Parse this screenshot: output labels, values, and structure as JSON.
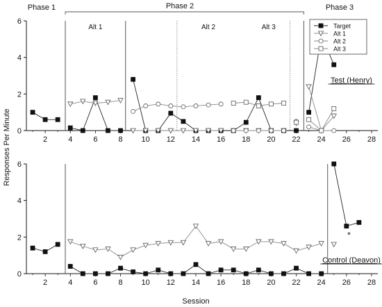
{
  "chart_data": {
    "type": "line",
    "ylabel": "Responses Per Minute",
    "xlabel": "Session",
    "x_ticks": [
      2,
      4,
      6,
      8,
      10,
      12,
      14,
      16,
      18,
      20,
      22,
      24,
      26,
      28
    ],
    "xlim": [
      0.5,
      28.5
    ],
    "phase_labels": [
      "Phase 1",
      "Phase 2",
      "Phase 3"
    ],
    "legend": {
      "placement": "top-right",
      "entries": [
        {
          "name": "Target",
          "marker": "square-filled"
        },
        {
          "name": "Alt 1",
          "marker": "triangle-down-open"
        },
        {
          "name": "Alt 2",
          "marker": "circle-open"
        },
        {
          "name": "Alt 3",
          "marker": "square-open"
        }
      ]
    },
    "panels": [
      {
        "id": "henry",
        "label": "Test (Henry)",
        "ylim": [
          0,
          6
        ],
        "y_ticks": [
          0,
          2,
          4,
          6
        ],
        "phase_lines": [
          3.6,
          8.4,
          22.6
        ],
        "sub_lines": [
          12.5,
          21.5
        ],
        "sub_labels": [
          {
            "text": "Alt 1",
            "x": 6
          },
          {
            "text": "Alt 2",
            "x": 15
          },
          {
            "text": "Alt 3",
            "x": 19.8
          }
        ],
        "series": [
          {
            "name": "Target",
            "marker": "square-filled",
            "segments": [
              [
                [
                  1,
                  1.0
                ],
                [
                  2,
                  0.6
                ],
                [
                  3,
                  0.6
                ]
              ],
              [
                [
                  4,
                  0.15
                ],
                [
                  5,
                  0.0
                ],
                [
                  6,
                  1.8
                ],
                [
                  7,
                  0.0
                ],
                [
                  8,
                  0.0
                ]
              ],
              [
                [
                  9,
                  2.8
                ],
                [
                  10,
                  0.0
                ],
                [
                  11,
                  0.0
                ],
                [
                  12,
                  0.95
                ],
                [
                  13,
                  0.5
                ],
                [
                  14,
                  0.0
                ],
                [
                  15,
                  0.0
                ],
                [
                  16,
                  0.0
                ]
              ],
              [
                [
                  17,
                  0.0
                ],
                [
                  18,
                  0.45
                ],
                [
                  19,
                  1.8
                ],
                [
                  20,
                  0.0
                ],
                [
                  21,
                  0.0
                ]
              ],
              [
                [
                  22,
                  0.0
                ]
              ],
              [
                [
                  23,
                  1.0
                ],
                [
                  24,
                  5.2
                ],
                [
                  25,
                  3.6
                ]
              ]
            ]
          },
          {
            "name": "Alt 1",
            "marker": "triangle-down-open",
            "segments": [
              [
                [
                  4,
                  1.45
                ],
                [
                  5,
                  1.6
                ],
                [
                  6,
                  1.5
                ],
                [
                  7,
                  1.55
                ],
                [
                  8,
                  1.65
                ]
              ],
              [
                [
                  9,
                  0.0
                ],
                [
                  10,
                  0.0
                ],
                [
                  11,
                  0.0
                ],
                [
                  12,
                  0.0
                ],
                [
                  13,
                  0.0
                ],
                [
                  14,
                  0.0
                ],
                [
                  15,
                  0.0
                ],
                [
                  16,
                  0.0
                ]
              ],
              [
                [
                  17,
                  0.0
                ],
                [
                  18,
                  0.0
                ],
                [
                  19,
                  0.0
                ],
                [
                  20,
                  0.0
                ],
                [
                  21,
                  0.0
                ]
              ],
              [
                [
                  22,
                  0.4
                ]
              ],
              [
                [
                  23,
                  2.4
                ],
                [
                  24,
                  0.0
                ],
                [
                  25,
                  0.8
                ]
              ]
            ]
          },
          {
            "name": "Alt 2",
            "marker": "circle-open",
            "segments": [
              [
                [
                  9,
                  1.05
                ],
                [
                  10,
                  1.35
                ],
                [
                  11,
                  1.45
                ],
                [
                  12,
                  1.35
                ],
                [
                  13,
                  1.3
                ],
                [
                  14,
                  1.35
                ],
                [
                  15,
                  1.4
                ],
                [
                  16,
                  1.45
                ]
              ],
              [
                [
                  17,
                  0.0
                ],
                [
                  18,
                  0.0
                ],
                [
                  19,
                  0.0
                ],
                [
                  20,
                  0.0
                ],
                [
                  21,
                  0.0
                ]
              ],
              [
                [
                  22,
                  0.5
                ]
              ],
              [
                [
                  23,
                  0.2
                ],
                [
                  24,
                  0.0
                ],
                [
                  25,
                  0.0
                ]
              ]
            ]
          },
          {
            "name": "Alt 3",
            "marker": "square-open",
            "segments": [
              [
                [
                  17,
                  1.5
                ],
                [
                  18,
                  1.55
                ],
                [
                  19,
                  1.35
                ],
                [
                  20,
                  1.45
                ],
                [
                  21,
                  1.5
                ]
              ],
              [
                [
                  22,
                  0.45
                ]
              ],
              [
                [
                  23,
                  0.6
                ],
                [
                  24,
                  0.0
                ],
                [
                  25,
                  1.2
                ]
              ]
            ]
          }
        ]
      },
      {
        "id": "deavon",
        "label": "Control (Deavon)",
        "ylim": [
          0,
          6
        ],
        "y_ticks": [
          0,
          2,
          4,
          6
        ],
        "phase_lines": [
          3.6,
          24.5
        ],
        "sub_lines": [],
        "sub_labels": [],
        "annotation": {
          "text": "*",
          "x": 26.2,
          "y": 2.1
        },
        "series": [
          {
            "name": "Target",
            "marker": "square-filled",
            "segments": [
              [
                [
                  1,
                  1.4
                ],
                [
                  2,
                  1.2
                ],
                [
                  3,
                  1.6
                ]
              ],
              [
                [
                  4,
                  0.4
                ],
                [
                  5,
                  0.0
                ],
                [
                  6,
                  0.0
                ],
                [
                  7,
                  0.0
                ],
                [
                  8,
                  0.3
                ],
                [
                  9,
                  0.1
                ],
                [
                  10,
                  0.0
                ],
                [
                  11,
                  0.2
                ],
                [
                  12,
                  0.0
                ],
                [
                  13,
                  0.0
                ],
                [
                  14,
                  0.5
                ],
                [
                  15,
                  0.0
                ],
                [
                  16,
                  0.2
                ],
                [
                  17,
                  0.2
                ],
                [
                  18,
                  0.0
                ],
                [
                  19,
                  0.2
                ],
                [
                  20,
                  0.0
                ],
                [
                  21,
                  0.0
                ],
                [
                  22,
                  0.3
                ],
                [
                  23,
                  0.0
                ],
                [
                  24,
                  0.0
                ]
              ],
              [
                [
                  25,
                  6.0
                ],
                [
                  26,
                  2.6
                ],
                [
                  27,
                  2.8
                ]
              ]
            ]
          },
          {
            "name": "Alt 1",
            "marker": "triangle-down-open",
            "segments": [
              [
                [
                  4,
                  1.75
                ],
                [
                  5,
                  1.5
                ],
                [
                  6,
                  1.3
                ],
                [
                  7,
                  1.35
                ],
                [
                  8,
                  0.9
                ],
                [
                  9,
                  1.3
                ],
                [
                  10,
                  1.55
                ],
                [
                  11,
                  1.65
                ],
                [
                  12,
                  1.7
                ],
                [
                  13,
                  1.7
                ],
                [
                  14,
                  2.6
                ],
                [
                  15,
                  1.65
                ],
                [
                  16,
                  1.75
                ],
                [
                  17,
                  1.35
                ],
                [
                  18,
                  1.35
                ],
                [
                  19,
                  1.75
                ],
                [
                  20,
                  1.75
                ],
                [
                  21,
                  1.65
                ],
                [
                  22,
                  1.25
                ],
                [
                  23,
                  1.45
                ],
                [
                  24,
                  1.65
                ]
              ],
              [
                [
                  25,
                  1.6
                ]
              ]
            ]
          }
        ]
      }
    ]
  }
}
